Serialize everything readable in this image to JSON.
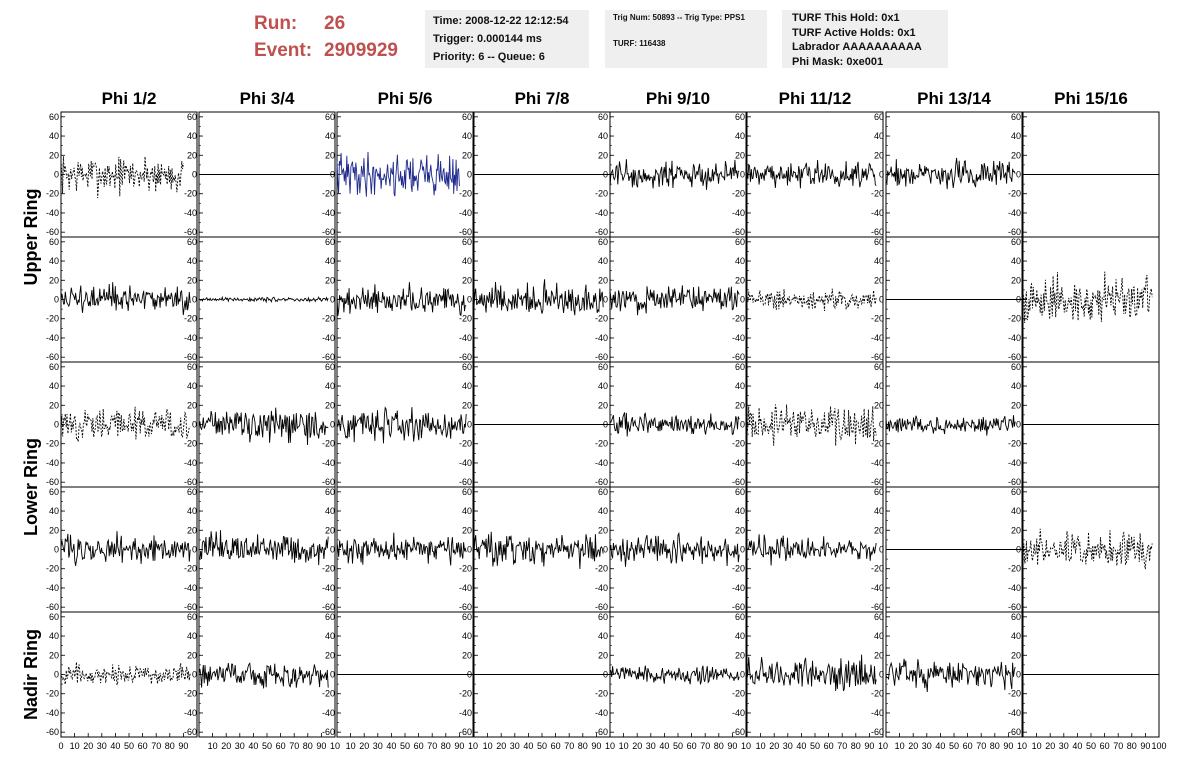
{
  "header": {
    "run_label": "Run:",
    "run_value": "26",
    "event_label": "Event:",
    "event_value": "2909929",
    "time": "Time: 2008-12-22 12:12:54",
    "trigger": "Trigger: 0.000144 ms",
    "priority": "Priority: 6 -- Queue: 6",
    "trig_num": "Trig Num: 50893 -- Trig Type: PPS1",
    "turf": "TURF: 116438",
    "turf_this_hold": "TURF This Hold: 0x1",
    "turf_active_holds": "TURF Active Holds: 0x1",
    "labrador": "Labrador AAAAAAAAAA",
    "phi_mask": "Phi Mask: 0xe001"
  },
  "colors": {
    "text_red": "#c0504d",
    "box_bg": "#efefef",
    "trace": "#000000",
    "highlight_trace": "#1f2a8c"
  },
  "chart_data": {
    "type": "line",
    "column_titles": [
      "Phi 1/2",
      "Phi 3/4",
      "Phi 5/6",
      "Phi 7/8",
      "Phi 9/10",
      "Phi 11/12",
      "Phi 13/14",
      "Phi 15/16"
    ],
    "row_titles": [
      "Upper Ring",
      "Lower Ring",
      "Nadir Ring"
    ],
    "subrows": [
      "Upper Ring",
      "Upper Ring",
      "Lower Ring",
      "Lower Ring",
      "Nadir Ring"
    ],
    "xlim": [
      0,
      100
    ],
    "ylim": [
      -65,
      65
    ],
    "yticks": [
      -60,
      -40,
      -20,
      0,
      20,
      40,
      60
    ],
    "xticks_first": [
      "0",
      "10",
      "20",
      "30",
      "40",
      "50",
      "60",
      "70",
      "80",
      "90"
    ],
    "xticks_other": [
      "10",
      "20",
      "30",
      "40",
      "50",
      "60",
      "70",
      "80",
      "90",
      "10"
    ],
    "xticks_last": [
      "10",
      "20",
      "30",
      "40",
      "50",
      "60",
      "70",
      "80",
      "90",
      "100"
    ],
    "panels": [
      [
        {
          "style": "dashed",
          "amp": 18,
          "x0": 0,
          "x1": 90
        },
        {
          "style": "solid",
          "amp": 13,
          "x0": 0,
          "x1": 95
        },
        {
          "style": "dashed",
          "amp": 15,
          "x0": 0,
          "x1": 95
        },
        {
          "style": "solid",
          "amp": 13,
          "x0": 0,
          "x1": 95
        },
        {
          "style": "dashed",
          "amp": 9,
          "x0": 0,
          "x1": 95
        },
        {
          "style": "flat"
        },
        {
          "style": "flat"
        },
        {
          "style": "flat"
        }
      ],
      [
        {
          "style": "flat"
        },
        {
          "style": "solid",
          "amp": 2,
          "x0": 0,
          "x1": 95
        },
        {
          "style": "solid",
          "amp": 14,
          "x0": 0,
          "x1": 95
        },
        {
          "style": "solid",
          "amp": 14,
          "x0": 0,
          "x1": 95
        },
        {
          "style": "solid",
          "amp": 13,
          "x0": 0,
          "x1": 95
        },
        {
          "style": "solid",
          "amp": 13,
          "x0": 0,
          "x1": 95
        },
        {
          "style": "solid",
          "amp": 12,
          "x0": 0,
          "x1": 95
        },
        {
          "style": "solid",
          "amp": 12,
          "x0": 0,
          "x1": 95
        }
      ],
      [
        {
          "style": "blue",
          "amp": 20,
          "x0": 0,
          "x1": 90
        },
        {
          "style": "solid",
          "amp": 13,
          "x0": 0,
          "x1": 95
        },
        {
          "style": "solid",
          "amp": 15,
          "x0": 0,
          "x1": 95
        },
        {
          "style": "solid",
          "amp": 13,
          "x0": 0,
          "x1": 95
        },
        {
          "style": "flat"
        },
        {
          "style": "flat"
        },
        {
          "style": "flat"
        },
        {
          "style": "flat"
        }
      ],
      [
        {
          "style": "flat"
        },
        {
          "style": "solid",
          "amp": 14,
          "x0": 0,
          "x1": 95
        },
        {
          "style": "flat"
        },
        {
          "style": "solid",
          "amp": 14,
          "x0": 0,
          "x1": 95
        },
        {
          "style": "flat"
        },
        {
          "style": "solid",
          "amp": 13,
          "x0": 0,
          "x1": 95
        },
        {
          "style": "flat"
        },
        {
          "style": "solid",
          "amp": 13,
          "x0": 0,
          "x1": 95
        }
      ],
      [
        {
          "style": "solid",
          "amp": 13,
          "x0": 0,
          "x1": 95
        },
        {
          "style": "solid",
          "amp": 13,
          "x0": 0,
          "x1": 95
        },
        {
          "style": "solid",
          "amp": 10,
          "x0": 0,
          "x1": 95
        },
        {
          "style": "solid",
          "amp": 13,
          "x0": 0,
          "x1": 95
        },
        {
          "style": "solid",
          "amp": 8,
          "x0": 0,
          "x1": 95
        },
        {
          "style": "solid",
          "amp": 15,
          "x0": 0,
          "x1": 95
        },
        {
          "style": "solid",
          "amp": 15,
          "x0": 0,
          "x1": 95
        },
        {
          "style": "solid",
          "amp": 13,
          "x0": 0,
          "x1": 95
        }
      ],
      [
        {
          "style": "solid",
          "amp": 13,
          "x0": 0,
          "x1": 95
        },
        {
          "style": "dashed",
          "amp": 9,
          "x0": 0,
          "x1": 95
        },
        {
          "style": "dashed",
          "amp": 18,
          "x0": 0,
          "x1": 95
        },
        {
          "style": "solid",
          "amp": 12,
          "x0": 0,
          "x1": 95
        },
        {
          "style": "solid",
          "amp": 14,
          "x0": 0,
          "x1": 95
        },
        {
          "style": "solid",
          "amp": 16,
          "x0": 0,
          "x1": 95
        },
        {
          "style": "flat"
        },
        {
          "style": "flat"
        }
      ],
      [
        {
          "style": "solid",
          "amp": 13,
          "x0": 0,
          "x1": 95
        },
        {
          "style": "flat"
        },
        {
          "style": "solid",
          "amp": 9,
          "x0": 0,
          "x1": 95
        },
        {
          "style": "flat"
        },
        {
          "style": "solid",
          "amp": 13,
          "x0": 0,
          "x1": 95
        },
        {
          "style": "flat"
        },
        {
          "style": "flat"
        },
        {
          "style": "flat"
        }
      ],
      [
        {
          "style": "flat"
        },
        {
          "style": "dashed",
          "amp": 22,
          "x0": 0,
          "x1": 95
        },
        {
          "style": "flat"
        },
        {
          "style": "dashed",
          "amp": 17,
          "x0": 0,
          "x1": 95
        },
        {
          "style": "flat"
        },
        {
          "style": "dashed",
          "amp": 14,
          "x0": 0,
          "x1": 95
        },
        {
          "style": "flat"
        },
        {
          "style": "dashed",
          "amp": 13,
          "x0": 0,
          "x1": 95
        }
      ]
    ]
  }
}
